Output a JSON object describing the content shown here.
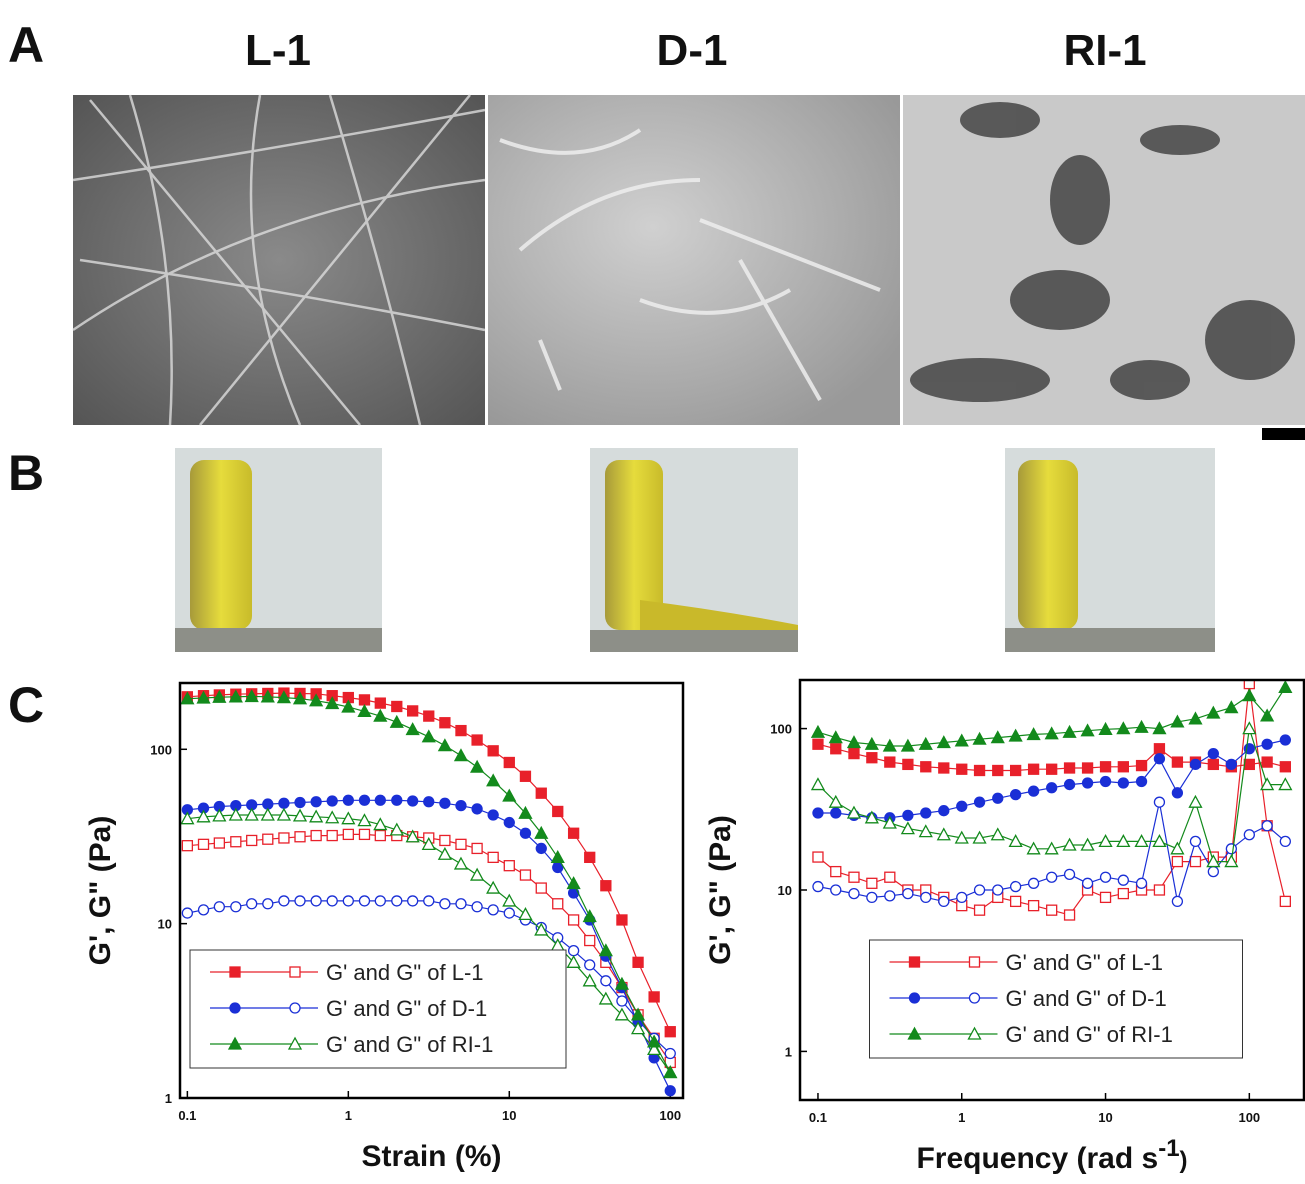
{
  "panel_labels": [
    "A",
    "B",
    "C"
  ],
  "sample_names": [
    "L-1",
    "D-1",
    "RI-1"
  ],
  "chart_data": [
    {
      "type": "line",
      "x_label": "Strain (%)",
      "y_label": "G', G\" (Pa)",
      "log_x": true,
      "log_y": true,
      "legend": "lower left",
      "xlim": [
        0.09,
        120
      ],
      "xticks": [
        0.1,
        1,
        10,
        100
      ],
      "ylim": [
        1,
        240
      ],
      "yticks": [
        1,
        10,
        100
      ],
      "x": [
        0.1,
        0.126,
        0.158,
        0.2,
        0.251,
        0.316,
        0.398,
        0.501,
        0.631,
        0.794,
        1,
        1.26,
        1.58,
        2,
        2.51,
        3.16,
        3.98,
        5.01,
        6.31,
        7.94,
        10,
        12.6,
        15.8,
        20,
        25.1,
        31.6,
        39.8,
        50.1,
        63.1,
        79.4,
        100
      ],
      "series": [
        {
          "name": "G' and G\" of L-1",
          "color": "#e8202a",
          "marker": "square",
          "storage_modulus": [
            200,
            203,
            205,
            207,
            208,
            209,
            210,
            209,
            208,
            203,
            198,
            192,
            184,
            176,
            166,
            155,
            142,
            128,
            113,
            98,
            84,
            70,
            56,
            44,
            33,
            24,
            16.5,
            10.5,
            6,
            3.8,
            2.4
          ],
          "loss_modulus": [
            28,
            28.5,
            29,
            29.5,
            30,
            30.5,
            31,
            31.5,
            32,
            32,
            32.5,
            32.5,
            32,
            32,
            31.5,
            31,
            30,
            28.5,
            27,
            24,
            21.5,
            19,
            16,
            13,
            10.5,
            8,
            6,
            4.3,
            3,
            2.2,
            1.6
          ]
        },
        {
          "name": "G' and G\" of D-1",
          "color": "#1a2fd6",
          "marker": "circle",
          "storage_modulus": [
            45,
            46,
            47,
            47.5,
            48,
            48.5,
            49,
            49.5,
            50,
            50.5,
            51,
            51,
            51,
            51,
            50.5,
            50,
            49,
            47.5,
            45.5,
            42,
            38,
            33,
            27,
            21,
            15,
            10.5,
            6.5,
            4.3,
            2.7,
            1.7,
            1.1
          ],
          "loss_modulus": [
            11.5,
            12,
            12.5,
            12.5,
            13,
            13,
            13.5,
            13.5,
            13.5,
            13.5,
            13.5,
            13.5,
            13.5,
            13.5,
            13.5,
            13.5,
            13,
            13,
            12.5,
            12,
            11.5,
            10.5,
            9.5,
            8.3,
            7,
            5.8,
            4.7,
            3.6,
            2.8,
            2.2,
            1.8
          ]
        },
        {
          "name": "G' and G\" of RI-1",
          "color": "#138a1c",
          "marker": "triangle",
          "storage_modulus": [
            195,
            197,
            199,
            200,
            201,
            200,
            198,
            195,
            190,
            183,
            175,
            165,
            155,
            143,
            130,
            118,
            105,
            92,
            79,
            66,
            54,
            43,
            33,
            24,
            17,
            11,
            7,
            4.5,
            3,
            2.1,
            1.4
          ],
          "loss_modulus": [
            40,
            41,
            41.5,
            42,
            42,
            42,
            42,
            41.5,
            41,
            40.5,
            40,
            39,
            37,
            34.5,
            31.5,
            28.5,
            25,
            22,
            19,
            16,
            13.5,
            11.3,
            9.2,
            7.5,
            6,
            4.7,
            3.7,
            3,
            2.5,
            1.9,
            1.4
          ]
        }
      ]
    },
    {
      "type": "line",
      "x_label": "Frequency (rad s",
      "x_label_superscript": "-1",
      "x_label_end": ")",
      "y_label": "G', G\" (Pa)",
      "log_x": true,
      "log_y": true,
      "legend": "lower center",
      "xlim": [
        0.075,
        240
      ],
      "xticks": [
        0.1,
        1,
        10,
        100
      ],
      "ylim": [
        0.5,
        200
      ],
      "yticks": [
        1,
        10,
        100
      ],
      "x": [
        0.1,
        0.133,
        0.178,
        0.237,
        0.316,
        0.422,
        0.562,
        0.75,
        1,
        1.33,
        1.78,
        2.37,
        3.16,
        4.22,
        5.62,
        7.5,
        10,
        13.3,
        17.8,
        23.7,
        31.6,
        42.2,
        56.2,
        75,
        100,
        133,
        178
      ],
      "series": [
        {
          "name": "G' and G\" of L-1",
          "color": "#e8202a",
          "marker": "square",
          "storage_modulus": [
            80,
            75,
            70,
            66,
            62,
            60,
            58,
            57,
            56,
            55,
            55,
            55,
            56,
            56,
            57,
            57,
            58,
            58,
            59,
            75,
            62,
            62,
            60,
            58,
            60,
            62,
            58
          ],
          "loss_modulus": [
            16,
            13,
            12,
            11,
            12,
            10,
            10,
            9,
            8,
            7.5,
            9,
            8.5,
            8,
            7.5,
            7,
            10,
            9,
            9.5,
            10,
            10,
            15,
            15,
            16,
            16,
            190,
            25,
            8.5
          ]
        },
        {
          "name": "G' and G\" of D-1",
          "color": "#1a2fd6",
          "marker": "circle",
          "storage_modulus": [
            30,
            30,
            29,
            28,
            28,
            29,
            30,
            31,
            33,
            35,
            37,
            39,
            41,
            43,
            45,
            46,
            47,
            46,
            47,
            65,
            40,
            60,
            70,
            60,
            75,
            80,
            85
          ],
          "loss_modulus": [
            10.5,
            10,
            9.5,
            9,
            9.2,
            9.5,
            9,
            8.5,
            9,
            10,
            10,
            10.5,
            11,
            12,
            12.5,
            11,
            12,
            11.5,
            11,
            35,
            8.5,
            20,
            13,
            18,
            22,
            25,
            20
          ]
        },
        {
          "name": "G' and G\" of RI-1",
          "color": "#138a1c",
          "marker": "triangle",
          "storage_modulus": [
            95,
            88,
            82,
            80,
            78,
            78,
            80,
            82,
            84,
            86,
            88,
            90,
            92,
            93,
            95,
            97,
            99,
            100,
            102,
            100,
            110,
            115,
            125,
            135,
            160,
            120,
            180
          ],
          "loss_modulus": [
            45,
            35,
            30,
            28,
            26,
            24,
            23,
            22,
            21,
            21,
            22,
            20,
            18,
            18,
            19,
            19,
            20,
            20,
            20,
            20,
            18,
            35,
            15,
            15,
            100,
            45,
            45
          ]
        }
      ]
    }
  ]
}
